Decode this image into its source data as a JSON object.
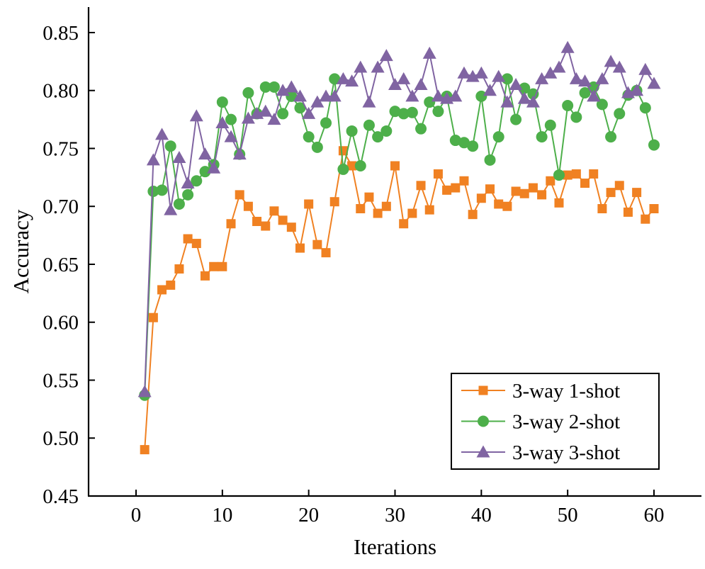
{
  "chart_data": {
    "type": "line",
    "title": "",
    "xlabel": "Iterations",
    "ylabel": "Accuracy",
    "x_ticks": [
      0,
      10,
      20,
      30,
      40,
      50,
      60
    ],
    "y_ticks": [
      0.45,
      0.5,
      0.55,
      0.6,
      0.65,
      0.7,
      0.75,
      0.8,
      0.85
    ],
    "y_tick_labels": [
      "0.45",
      "0.50",
      "0.55",
      "0.60",
      "0.65",
      "0.70",
      "0.75",
      "0.80",
      "0.85"
    ],
    "xlim": [
      -5.5,
      65.5
    ],
    "ylim": [
      0.45,
      0.872
    ],
    "grid": false,
    "legend_position": "lower-right",
    "axis_color": "#000000",
    "background": "#ffffff",
    "x": [
      1,
      2,
      3,
      4,
      5,
      6,
      7,
      8,
      9,
      10,
      11,
      12,
      13,
      14,
      15,
      16,
      17,
      18,
      19,
      20,
      21,
      22,
      23,
      24,
      25,
      26,
      27,
      28,
      29,
      30,
      31,
      32,
      33,
      34,
      35,
      36,
      37,
      38,
      39,
      40,
      41,
      42,
      43,
      44,
      45,
      46,
      47,
      48,
      49,
      50,
      51,
      52,
      53,
      54,
      55,
      56,
      57,
      58,
      59,
      60
    ],
    "series": [
      {
        "name": "3-way 1-shot",
        "color": "#f08122",
        "marker": "square",
        "values": [
          0.49,
          0.604,
          0.628,
          0.632,
          0.646,
          0.672,
          0.668,
          0.64,
          0.648,
          0.648,
          0.685,
          0.71,
          0.7,
          0.687,
          0.683,
          0.696,
          0.688,
          0.682,
          0.664,
          0.702,
          0.667,
          0.66,
          0.704,
          0.748,
          0.735,
          0.698,
          0.708,
          0.694,
          0.7,
          0.735,
          0.685,
          0.694,
          0.718,
          0.697,
          0.728,
          0.714,
          0.716,
          0.722,
          0.693,
          0.707,
          0.715,
          0.702,
          0.7,
          0.713,
          0.711,
          0.716,
          0.71,
          0.722,
          0.703,
          0.727,
          0.728,
          0.72,
          0.728,
          0.698,
          0.712,
          0.718,
          0.695,
          0.712,
          0.689,
          0.698
        ]
      },
      {
        "name": "3-way 2-shot",
        "color": "#4daf4a",
        "marker": "circle",
        "values": [
          0.537,
          0.713,
          0.714,
          0.752,
          0.702,
          0.71,
          0.722,
          0.73,
          0.736,
          0.79,
          0.775,
          0.745,
          0.798,
          0.78,
          0.803,
          0.803,
          0.78,
          0.795,
          0.785,
          0.76,
          0.751,
          0.772,
          0.81,
          0.732,
          0.765,
          0.735,
          0.77,
          0.76,
          0.765,
          0.782,
          0.78,
          0.781,
          0.767,
          0.79,
          0.782,
          0.795,
          0.757,
          0.755,
          0.752,
          0.795,
          0.74,
          0.76,
          0.81,
          0.775,
          0.802,
          0.797,
          0.76,
          0.77,
          0.727,
          0.787,
          0.777,
          0.798,
          0.803,
          0.788,
          0.76,
          0.78,
          0.796,
          0.8,
          0.785,
          0.753
        ]
      },
      {
        "name": "3-way 3-shot",
        "color": "#8064a2",
        "marker": "triangle",
        "values": [
          0.54,
          0.74,
          0.762,
          0.697,
          0.742,
          0.72,
          0.778,
          0.745,
          0.733,
          0.772,
          0.76,
          0.745,
          0.776,
          0.78,
          0.782,
          0.775,
          0.8,
          0.803,
          0.795,
          0.78,
          0.79,
          0.795,
          0.795,
          0.81,
          0.808,
          0.82,
          0.79,
          0.82,
          0.83,
          0.805,
          0.81,
          0.795,
          0.805,
          0.832,
          0.795,
          0.793,
          0.795,
          0.815,
          0.812,
          0.815,
          0.8,
          0.812,
          0.79,
          0.805,
          0.793,
          0.79,
          0.81,
          0.815,
          0.82,
          0.837,
          0.81,
          0.808,
          0.795,
          0.81,
          0.825,
          0.82,
          0.798,
          0.8,
          0.818,
          0.806
        ]
      }
    ]
  }
}
